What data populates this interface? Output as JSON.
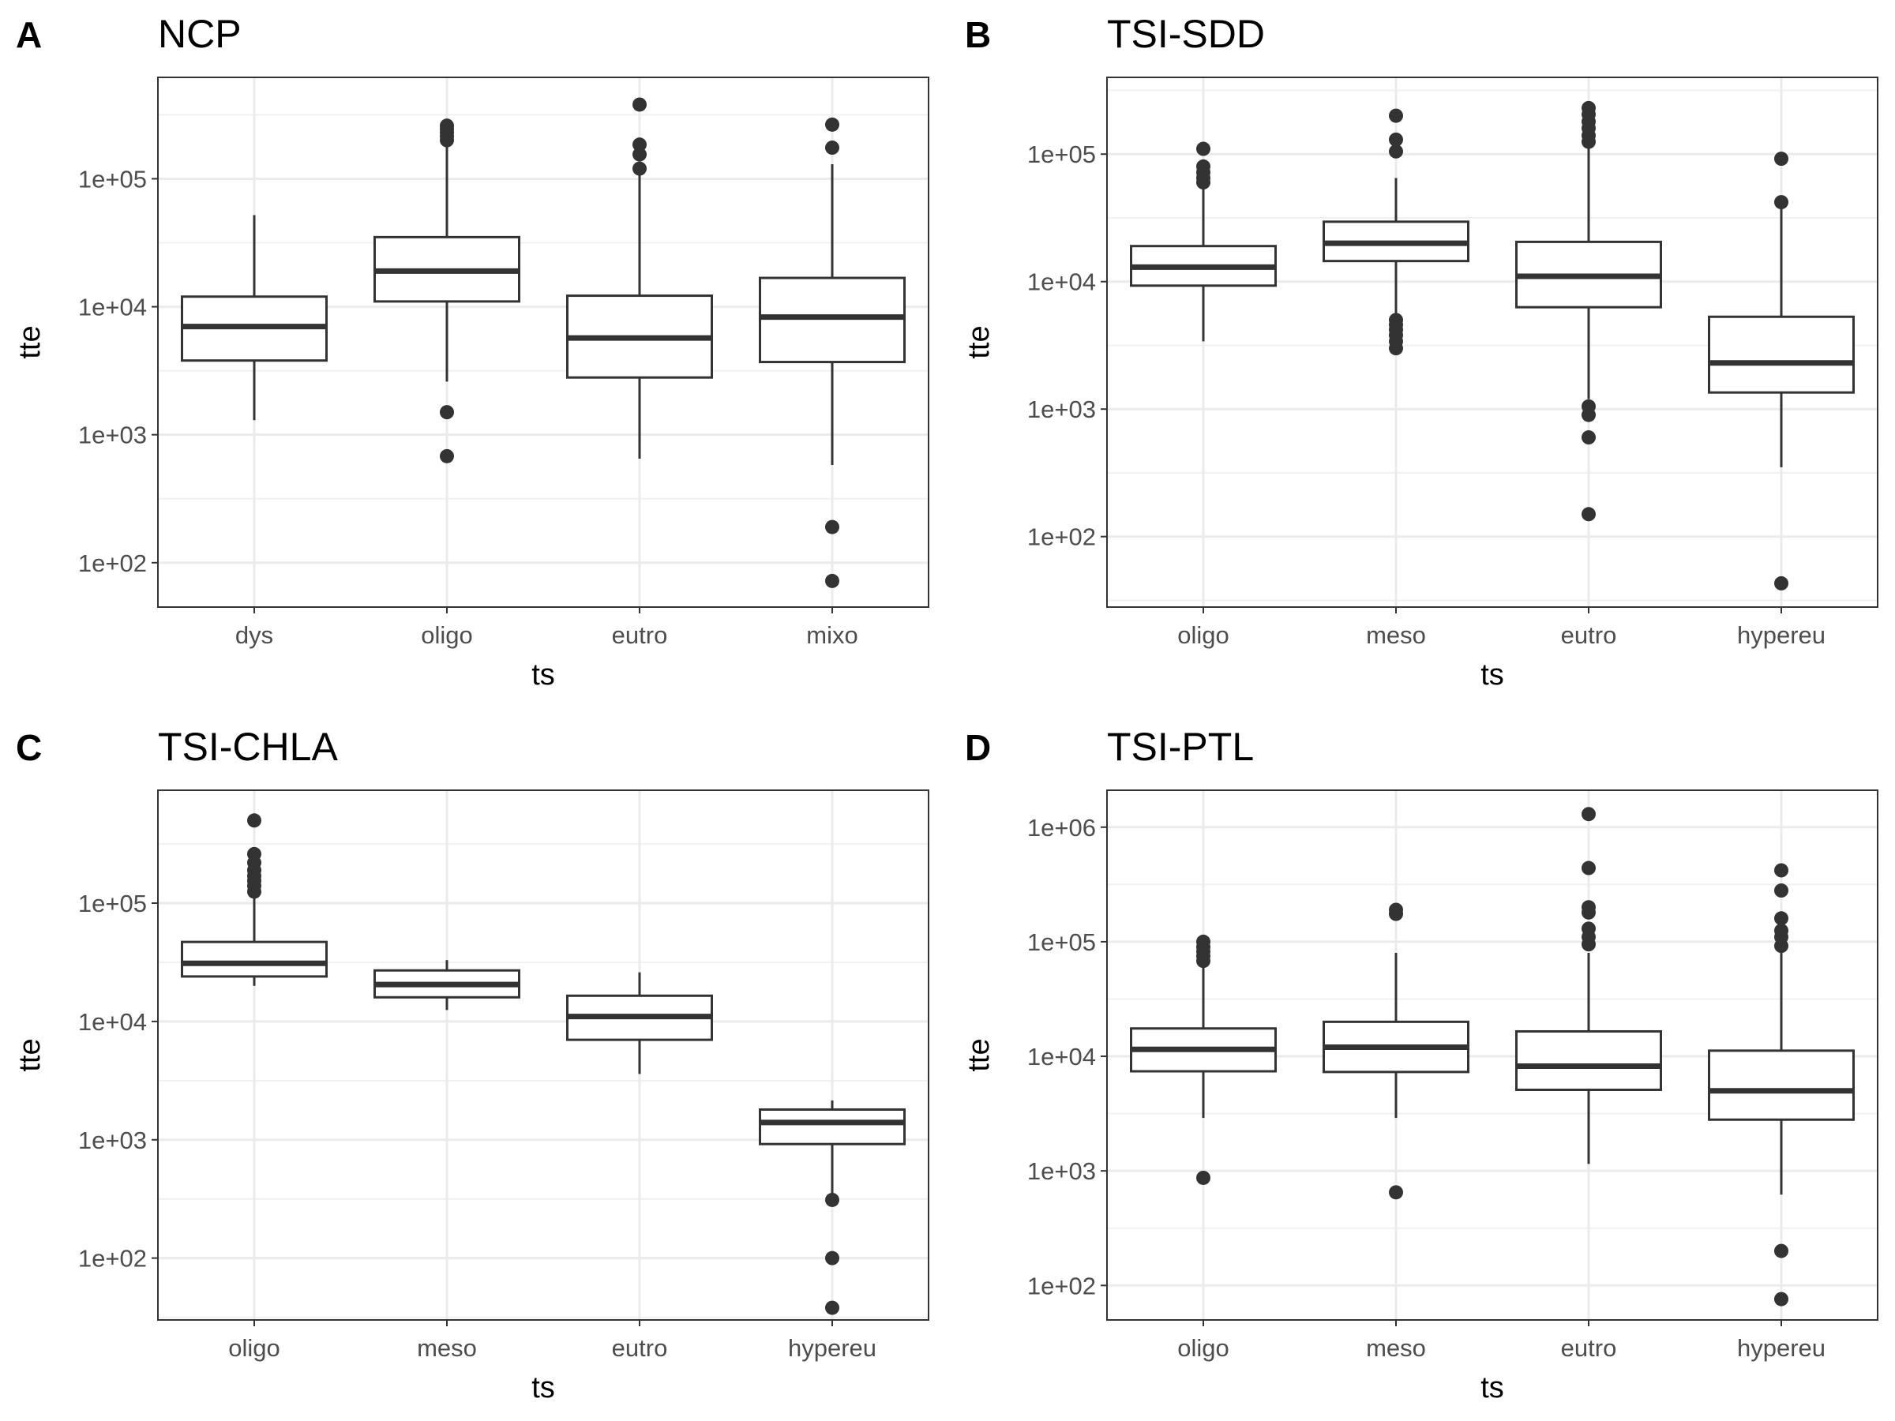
{
  "chart_data": [
    {
      "type": "box",
      "panel_letter": "A",
      "title": "NCP",
      "xlabel": "ts",
      "ylabel": "tte",
      "yscale": "log",
      "ylim": [
        45,
        620000
      ],
      "yticks": [
        100,
        1000,
        10000,
        100000
      ],
      "ytick_labels": [
        "1e+02",
        "1e+03",
        "1e+04",
        "1e+05"
      ],
      "grid": true,
      "categories": [
        "dys",
        "oligo",
        "eutro",
        "mixo"
      ],
      "boxes": [
        {
          "category": "dys",
          "whisker_low": 1300,
          "q1": 3800,
          "median": 7000,
          "q3": 12000,
          "whisker_high": 52000,
          "outliers": []
        },
        {
          "category": "oligo",
          "whisker_low": 2600,
          "q1": 11000,
          "median": 19000,
          "q3": 35000,
          "whisker_high": 190000,
          "outliers": [
            1500,
            680,
            200000,
            215000,
            230000,
            245000,
            260000
          ]
        },
        {
          "category": "eutro",
          "whisker_low": 650,
          "q1": 2800,
          "median": 5700,
          "q3": 12200,
          "whisker_high": 110000,
          "outliers": [
            120000,
            155000,
            185000,
            380000
          ]
        },
        {
          "category": "mixo",
          "whisker_low": 580,
          "q1": 3700,
          "median": 8300,
          "q3": 16800,
          "whisker_high": 130000,
          "outliers": [
            190,
            72,
            175000,
            265000
          ]
        }
      ]
    },
    {
      "type": "box",
      "panel_letter": "B",
      "title": "TSI-SDD",
      "xlabel": "ts",
      "ylabel": "tte",
      "yscale": "log",
      "ylim": [
        28,
        400000
      ],
      "yticks": [
        100,
        1000,
        10000,
        100000
      ],
      "ytick_labels": [
        "1e+02",
        "1e+03",
        "1e+04",
        "1e+05"
      ],
      "grid": true,
      "categories": [
        "oligo",
        "meso",
        "eutro",
        "hypereu"
      ],
      "boxes": [
        {
          "category": "oligo",
          "whisker_low": 3400,
          "q1": 9300,
          "median": 13000,
          "q3": 19000,
          "whisker_high": 55000,
          "outliers": [
            60000,
            65000,
            72000,
            80000,
            110000
          ]
        },
        {
          "category": "meso",
          "whisker_low": 5500,
          "q1": 14500,
          "median": 20000,
          "q3": 29500,
          "whisker_high": 65000,
          "outliers": [
            3000,
            3400,
            3800,
            4200,
            4600,
            5000,
            105000,
            130000,
            200000
          ]
        },
        {
          "category": "eutro",
          "whisker_low": 1200,
          "q1": 6300,
          "median": 11000,
          "q3": 20500,
          "whisker_high": 115000,
          "outliers": [
            150,
            600,
            900,
            1050,
            125000,
            140000,
            160000,
            180000,
            205000,
            230000
          ]
        },
        {
          "category": "hypereu",
          "whisker_low": 350,
          "q1": 1350,
          "median": 2300,
          "q3": 5300,
          "whisker_high": 40000,
          "outliers": [
            43,
            42000,
            92000
          ]
        }
      ]
    },
    {
      "type": "box",
      "panel_letter": "C",
      "title": "TSI-CHLA",
      "xlabel": "ts",
      "ylabel": "tte",
      "yscale": "log",
      "ylim": [
        30,
        900000
      ],
      "yticks": [
        100,
        1000,
        10000,
        100000
      ],
      "ytick_labels": [
        "1e+02",
        "1e+03",
        "1e+04",
        "1e+05"
      ],
      "grid": true,
      "categories": [
        "oligo",
        "meso",
        "eutro",
        "hypereu"
      ],
      "boxes": [
        {
          "category": "oligo",
          "whisker_low": 20000,
          "q1": 24000,
          "median": 31000,
          "q3": 47000,
          "whisker_high": 110000,
          "outliers": [
            125000,
            140000,
            155000,
            170000,
            190000,
            220000,
            260000,
            500000
          ]
        },
        {
          "category": "meso",
          "whisker_low": 12500,
          "q1": 16000,
          "median": 20500,
          "q3": 27000,
          "whisker_high": 33000,
          "outliers": []
        },
        {
          "category": "eutro",
          "whisker_low": 3600,
          "q1": 7000,
          "median": 11000,
          "q3": 16500,
          "whisker_high": 26000,
          "outliers": []
        },
        {
          "category": "hypereu",
          "whisker_low": 330,
          "q1": 920,
          "median": 1400,
          "q3": 1800,
          "whisker_high": 2150,
          "outliers": [
            310,
            100,
            38
          ]
        }
      ]
    },
    {
      "type": "box",
      "panel_letter": "D",
      "title": "TSI-PTL",
      "xlabel": "ts",
      "ylabel": "tte",
      "yscale": "log",
      "ylim": [
        50,
        2100000
      ],
      "yticks": [
        100,
        1000,
        10000,
        100000,
        1000000
      ],
      "ytick_labels": [
        "1e+02",
        "1e+03",
        "1e+04",
        "1e+05",
        "1e+06"
      ],
      "grid": true,
      "categories": [
        "oligo",
        "meso",
        "eutro",
        "hypereu"
      ],
      "boxes": [
        {
          "category": "oligo",
          "whisker_low": 2900,
          "q1": 7400,
          "median": 11500,
          "q3": 17500,
          "whisker_high": 62000,
          "outliers": [
            870,
            68000,
            75000,
            82000,
            90000,
            100000
          ]
        },
        {
          "category": "meso",
          "whisker_low": 2900,
          "q1": 7300,
          "median": 12000,
          "q3": 20000,
          "whisker_high": 80000,
          "outliers": [
            650,
            175000,
            190000
          ]
        },
        {
          "category": "eutro",
          "whisker_low": 1150,
          "q1": 5100,
          "median": 8200,
          "q3": 16500,
          "whisker_high": 80000,
          "outliers": [
            95000,
            110000,
            130000,
            180000,
            200000,
            440000,
            1300000
          ]
        },
        {
          "category": "hypereu",
          "whisker_low": 620,
          "q1": 2800,
          "median": 5000,
          "q3": 11200,
          "whisker_high": 80000,
          "outliers": [
            200,
            76,
            92000,
            110000,
            125000,
            160000,
            280000,
            420000
          ]
        }
      ]
    }
  ]
}
